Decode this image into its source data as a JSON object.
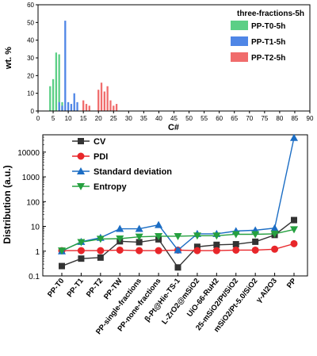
{
  "chart_data": [
    {
      "type": "bar",
      "legend_title": "three-fractions-5h",
      "xlabel": "C#",
      "ylabel": "wt. %",
      "xlim": [
        0,
        90
      ],
      "ylim": [
        0,
        60
      ],
      "xticks": [
        0,
        5,
        10,
        15,
        20,
        25,
        30,
        35,
        40,
        45,
        50,
        55,
        60,
        65,
        70,
        75,
        80,
        85,
        90
      ],
      "yticks": [
        0,
        10,
        20,
        30,
        40,
        50,
        60
      ],
      "legend_position": "top-right",
      "series": [
        {
          "name": "PP-T0-5h",
          "color": "#5ccf86",
          "x": [
            4,
            5,
            6,
            7,
            8
          ],
          "values": [
            14,
            18,
            33,
            32,
            5
          ]
        },
        {
          "name": "PP-T1-5h",
          "color": "#4f86e6",
          "x": [
            7,
            8,
            9,
            10,
            11,
            12,
            13
          ],
          "values": [
            5,
            3,
            51,
            5,
            4,
            10,
            5
          ]
        },
        {
          "name": "PP-T2-5h",
          "color": "#f06c6c",
          "x": [
            15,
            16,
            17,
            20,
            21,
            22,
            23,
            24,
            25,
            26
          ],
          "values": [
            6,
            4,
            3,
            12,
            16,
            11,
            14,
            6,
            3,
            4
          ]
        }
      ]
    },
    {
      "type": "line",
      "ylabel": "Distribution (a.u.)",
      "yscale": "log",
      "ylim": [
        0.1,
        50000
      ],
      "yticks": [
        0.1,
        1,
        10,
        100,
        1000,
        10000
      ],
      "ytick_labels": [
        "0.1",
        "1",
        "10",
        "100",
        "1000",
        "10000"
      ],
      "legend_position": "top-left",
      "categories": [
        "PP-T0",
        "PP-T1",
        "PP-T2",
        "PP-TW",
        "PP-single-fractions",
        "PP-none-fractions",
        "β-Pt@Hie-TS-1",
        "L-ZrO2@mSiO2",
        "UiO-66-RuH2",
        "25-mSiO2/Pt/SiO2",
        "mSiO2/Pt-5.0/SiO2",
        "γ-Al2O3",
        "PP"
      ],
      "series": [
        {
          "name": "CV",
          "color": "#333333",
          "marker": "square",
          "values": [
            0.25,
            0.5,
            0.55,
            2.5,
            2.3,
            3.0,
            0.22,
            1.5,
            1.8,
            1.9,
            2.4,
            4.5,
            18
          ]
        },
        {
          "name": "PDI",
          "color": "#e8262a",
          "marker": "circle",
          "values": [
            1.05,
            1.05,
            1.05,
            1.1,
            1.05,
            1.05,
            1.1,
            1.05,
            1.05,
            1.1,
            1.1,
            1.2,
            2.0
          ]
        },
        {
          "name": "Standard deviation",
          "color": "#1b6dc4",
          "marker": "triangle-up",
          "values": [
            1.0,
            2.4,
            3.5,
            8.0,
            8.0,
            11.5,
            1.1,
            5.0,
            5.0,
            6.5,
            7.0,
            8.5,
            38000
          ]
        },
        {
          "name": "Entropy",
          "color": "#25a03f",
          "marker": "triangle-down",
          "values": [
            1.05,
            2.3,
            3.1,
            3.2,
            3.8,
            4.0,
            4.0,
            4.2,
            4.2,
            4.8,
            4.8,
            5.0,
            7.5
          ]
        }
      ]
    }
  ]
}
